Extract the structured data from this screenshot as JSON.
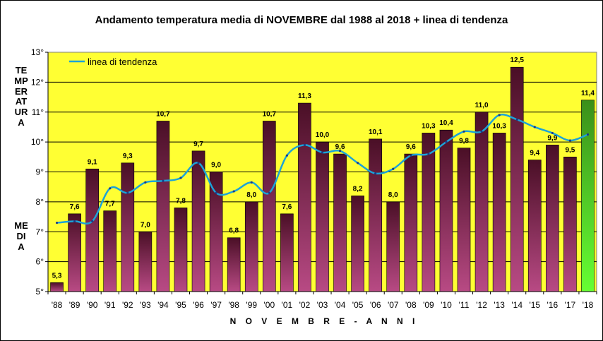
{
  "chart_data": {
    "type": "bar",
    "title": "Andamento temperatura media di NOVEMBRE dal 1988 al 2018 + linea di tendenza",
    "xlabel": "N O V E M B R E - A N N I",
    "ylabel_top": "TEMPERATURA",
    "ylabel_bottom": "MEDIA",
    "categories": [
      "'88",
      "'89",
      "'90",
      "'91",
      "'92",
      "'93",
      "'94",
      "'95",
      "'96",
      "'97",
      "'98",
      "'99",
      "'00",
      "'01",
      "'02",
      "'03",
      "'04",
      "'05",
      "'06",
      "'07",
      "'08",
      "'09",
      "'10",
      "'11",
      "'12",
      "'13",
      "'14",
      "'15",
      "'16",
      "'17",
      "'18"
    ],
    "values": [
      5.3,
      7.6,
      9.1,
      7.7,
      9.3,
      7.0,
      10.7,
      7.8,
      9.7,
      9.0,
      6.8,
      8.0,
      10.7,
      7.6,
      11.3,
      10.0,
      9.6,
      8.2,
      10.1,
      8.0,
      9.6,
      10.3,
      10.4,
      9.8,
      11.0,
      10.3,
      12.5,
      9.4,
      9.9,
      9.5,
      11.4
    ],
    "value_labels": [
      "5,3",
      "7,6",
      "9,1",
      "7,7",
      "9,3",
      "7,0",
      "10,7",
      "7,8",
      "9,7",
      "9,0",
      "6,8",
      "8,0",
      "10,7",
      "7,6",
      "11,3",
      "10,0",
      "9,6",
      "8,2",
      "10,1",
      "8,0",
      "9,6",
      "10,3",
      "10,4",
      "9,8",
      "11,0",
      "10,3",
      "12,5",
      "9,4",
      "9,9",
      "9,5",
      "11,4"
    ],
    "trend": {
      "name": "linea di tendenza",
      "values": [
        7.3,
        7.35,
        7.35,
        8.45,
        8.3,
        8.65,
        8.7,
        8.8,
        9.3,
        8.3,
        8.35,
        8.65,
        8.3,
        9.55,
        9.9,
        9.65,
        9.7,
        9.3,
        8.95,
        9.1,
        9.55,
        9.6,
        10.0,
        10.35,
        10.35,
        10.9,
        10.75,
        10.5,
        10.3,
        10.05,
        10.25
      ]
    },
    "yticks": [
      "5°",
      "6°",
      "7°",
      "8°",
      "9°",
      "10°",
      "11°",
      "12°",
      "13°"
    ],
    "ylim": [
      5,
      13
    ],
    "grid": true,
    "legend": "top-left",
    "colors": {
      "plot_bg": "#ffff33",
      "bar_top": "#4a0f26",
      "bar_bottom": "#b84a84",
      "last_bar_top": "#3a8f1a",
      "last_bar_bottom": "#66ff33",
      "trend": "#1ca3d8"
    }
  }
}
